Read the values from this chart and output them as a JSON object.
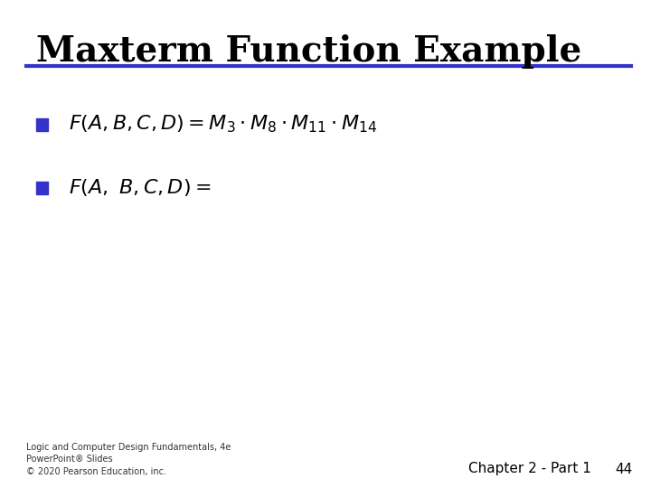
{
  "title": "Maxterm Function Example",
  "title_fontsize": 28,
  "title_color": "#000000",
  "line_color": "#3333cc",
  "line_thickness": 3,
  "bullet_color": "#3333cc",
  "line1": "$F(A, B, C, D) = M_3 \\cdot M_8 \\cdot M_{11} \\cdot M_{14}$",
  "line2": "$F(A,\\ B, C, D) =$",
  "footer_left": "Logic and Computer Design Fundamentals, 4e\nPowerPoint® Slides\n© 2020 Pearson Education, inc.",
  "footer_right": "Chapter 2 - Part 1",
  "footer_page": "44",
  "bg_color": "#ffffff",
  "text_color": "#000000",
  "footer_fontsize": 7,
  "chapter_fontsize": 11
}
